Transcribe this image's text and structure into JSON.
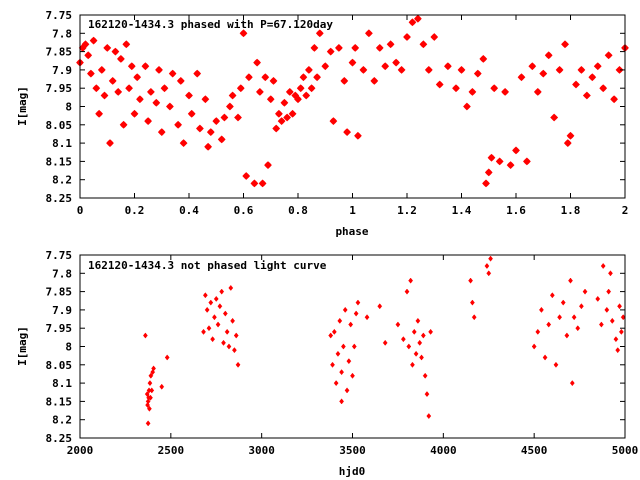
{
  "chart_data": [
    {
      "type": "scatter",
      "title": "162120-1434.3 phased with P=67.120day",
      "xlabel": "phase",
      "ylabel": "I[mag]",
      "xlim": [
        0,
        2
      ],
      "ylim": [
        8.25,
        7.75
      ],
      "y_inverted": true,
      "xticks": [
        "0",
        "0.2",
        "0.4",
        "0.6",
        "0.8",
        "1",
        "1.2",
        "1.4",
        "1.6",
        "1.8",
        "2"
      ],
      "yticks": [
        "7.75",
        "7.8",
        "7.85",
        "7.9",
        "7.95",
        "8",
        "8.05",
        "8.1",
        "8.15",
        "8.2",
        "8.25"
      ],
      "grid": false,
      "marker_color": "#ff0000",
      "marker": "filled-star",
      "series": [
        {
          "points": [
            [
              0.0,
              7.88
            ],
            [
              0.01,
              7.84
            ],
            [
              0.02,
              7.83
            ],
            [
              0.03,
              7.86
            ],
            [
              0.04,
              7.91
            ],
            [
              0.05,
              7.82
            ],
            [
              0.06,
              7.95
            ],
            [
              0.07,
              8.02
            ],
            [
              0.08,
              7.9
            ],
            [
              0.09,
              7.97
            ],
            [
              0.1,
              7.84
            ],
            [
              0.11,
              8.1
            ],
            [
              0.12,
              7.93
            ],
            [
              0.13,
              7.85
            ],
            [
              0.14,
              7.96
            ],
            [
              0.15,
              7.87
            ],
            [
              0.16,
              8.05
            ],
            [
              0.17,
              7.83
            ],
            [
              0.18,
              7.95
            ],
            [
              0.19,
              7.89
            ],
            [
              0.2,
              8.02
            ],
            [
              0.21,
              7.92
            ],
            [
              0.22,
              7.98
            ],
            [
              0.24,
              7.89
            ],
            [
              0.25,
              8.04
            ],
            [
              0.26,
              7.96
            ],
            [
              0.28,
              7.99
            ],
            [
              0.29,
              7.9
            ],
            [
              0.3,
              8.07
            ],
            [
              0.31,
              7.95
            ],
            [
              0.33,
              8.0
            ],
            [
              0.34,
              7.91
            ],
            [
              0.36,
              8.05
            ],
            [
              0.37,
              7.93
            ],
            [
              0.38,
              8.1
            ],
            [
              0.4,
              7.97
            ],
            [
              0.41,
              8.02
            ],
            [
              0.43,
              7.91
            ],
            [
              0.44,
              8.06
            ],
            [
              0.46,
              7.98
            ],
            [
              0.47,
              8.11
            ],
            [
              0.48,
              8.07
            ],
            [
              0.5,
              8.04
            ],
            [
              0.52,
              8.09
            ],
            [
              0.53,
              8.03
            ],
            [
              0.55,
              8.0
            ],
            [
              0.56,
              7.97
            ],
            [
              0.58,
              8.03
            ],
            [
              0.59,
              7.95
            ],
            [
              0.6,
              7.8
            ],
            [
              0.61,
              8.19
            ],
            [
              0.62,
              7.92
            ],
            [
              0.64,
              8.21
            ],
            [
              0.65,
              7.88
            ],
            [
              0.66,
              7.96
            ],
            [
              0.67,
              8.21
            ],
            [
              0.68,
              7.92
            ],
            [
              0.69,
              8.16
            ],
            [
              0.7,
              7.98
            ],
            [
              0.71,
              7.93
            ],
            [
              0.72,
              8.06
            ],
            [
              0.73,
              8.02
            ],
            [
              0.74,
              8.04
            ],
            [
              0.75,
              7.99
            ],
            [
              0.76,
              8.03
            ],
            [
              0.77,
              7.96
            ],
            [
              0.78,
              8.02
            ],
            [
              0.79,
              7.97
            ],
            [
              0.8,
              7.98
            ],
            [
              0.81,
              7.95
            ],
            [
              0.82,
              7.92
            ],
            [
              0.83,
              7.97
            ],
            [
              0.84,
              7.9
            ],
            [
              0.85,
              7.95
            ],
            [
              0.86,
              7.84
            ],
            [
              0.87,
              7.92
            ],
            [
              0.88,
              7.8
            ],
            [
              0.9,
              7.89
            ],
            [
              0.92,
              7.85
            ],
            [
              0.93,
              8.04
            ],
            [
              0.95,
              7.84
            ],
            [
              0.97,
              7.93
            ],
            [
              0.98,
              8.07
            ],
            [
              1.0,
              7.88
            ],
            [
              1.01,
              7.84
            ],
            [
              1.02,
              8.08
            ],
            [
              1.04,
              7.9
            ],
            [
              1.06,
              7.8
            ],
            [
              1.08,
              7.93
            ],
            [
              1.1,
              7.84
            ],
            [
              1.12,
              7.89
            ],
            [
              1.14,
              7.83
            ],
            [
              1.16,
              7.88
            ],
            [
              1.18,
              7.9
            ],
            [
              1.2,
              7.81
            ],
            [
              1.22,
              7.77
            ],
            [
              1.24,
              7.76
            ],
            [
              1.26,
              7.83
            ],
            [
              1.28,
              7.9
            ],
            [
              1.3,
              7.81
            ],
            [
              1.32,
              7.94
            ],
            [
              1.35,
              7.89
            ],
            [
              1.38,
              7.95
            ],
            [
              1.4,
              7.9
            ],
            [
              1.42,
              8.0
            ],
            [
              1.44,
              7.96
            ],
            [
              1.46,
              7.91
            ],
            [
              1.48,
              7.87
            ],
            [
              1.49,
              8.21
            ],
            [
              1.5,
              8.18
            ],
            [
              1.51,
              8.14
            ],
            [
              1.52,
              7.95
            ],
            [
              1.54,
              8.15
            ],
            [
              1.56,
              7.96
            ],
            [
              1.58,
              8.16
            ],
            [
              1.6,
              8.12
            ],
            [
              1.62,
              7.92
            ],
            [
              1.64,
              8.15
            ],
            [
              1.66,
              7.89
            ],
            [
              1.68,
              7.96
            ],
            [
              1.7,
              7.91
            ],
            [
              1.72,
              7.86
            ],
            [
              1.74,
              8.03
            ],
            [
              1.76,
              7.9
            ],
            [
              1.78,
              7.83
            ],
            [
              1.79,
              8.1
            ],
            [
              1.8,
              8.08
            ],
            [
              1.82,
              7.94
            ],
            [
              1.84,
              7.9
            ],
            [
              1.86,
              7.97
            ],
            [
              1.88,
              7.92
            ],
            [
              1.9,
              7.89
            ],
            [
              1.92,
              7.95
            ],
            [
              1.94,
              7.86
            ],
            [
              1.96,
              7.98
            ],
            [
              1.98,
              7.9
            ],
            [
              2.0,
              7.84
            ]
          ]
        }
      ]
    },
    {
      "type": "scatter",
      "title": "162120-1434.3 not phased light curve",
      "xlabel": "hjd0",
      "ylabel": "I[mag]",
      "xlim": [
        2000,
        5000
      ],
      "ylim": [
        8.25,
        7.75
      ],
      "y_inverted": true,
      "xticks": [
        "2000",
        "2500",
        "3000",
        "3500",
        "4000",
        "4500",
        "5000"
      ],
      "yticks": [
        "7.75",
        "7.8",
        "7.85",
        "7.9",
        "7.95",
        "8",
        "8.05",
        "8.1",
        "8.15",
        "8.2",
        "8.25"
      ],
      "grid": false,
      "marker_color": "#ff0000",
      "marker": "filled-diamond",
      "series": [
        {
          "points": [
            [
              2360,
              7.97
            ],
            [
              2370,
              8.13
            ],
            [
              2372,
              8.16
            ],
            [
              2375,
              8.15
            ],
            [
              2378,
              8.14
            ],
            [
              2380,
              8.12
            ],
            [
              2382,
              8.17
            ],
            [
              2385,
              8.1
            ],
            [
              2388,
              8.14
            ],
            [
              2390,
              8.08
            ],
            [
              2395,
              8.12
            ],
            [
              2400,
              8.07
            ],
            [
              2405,
              8.06
            ],
            [
              2375,
              8.21
            ],
            [
              2450,
              8.11
            ],
            [
              2480,
              8.03
            ],
            [
              2680,
              7.96
            ],
            [
              2690,
              7.86
            ],
            [
              2700,
              7.9
            ],
            [
              2710,
              7.95
            ],
            [
              2720,
              7.88
            ],
            [
              2730,
              7.98
            ],
            [
              2740,
              7.92
            ],
            [
              2750,
              7.87
            ],
            [
              2760,
              7.94
            ],
            [
              2770,
              7.89
            ],
            [
              2780,
              7.85
            ],
            [
              2790,
              7.99
            ],
            [
              2800,
              7.91
            ],
            [
              2810,
              7.96
            ],
            [
              2820,
              8.0
            ],
            [
              2830,
              7.84
            ],
            [
              2840,
              7.93
            ],
            [
              2850,
              8.01
            ],
            [
              2860,
              7.97
            ],
            [
              2870,
              8.05
            ],
            [
              3380,
              7.97
            ],
            [
              3390,
              8.05
            ],
            [
              3400,
              7.96
            ],
            [
              3410,
              8.1
            ],
            [
              3420,
              8.02
            ],
            [
              3430,
              7.93
            ],
            [
              3440,
              8.07
            ],
            [
              3450,
              8.0
            ],
            [
              3460,
              7.9
            ],
            [
              3470,
              8.12
            ],
            [
              3480,
              8.04
            ],
            [
              3490,
              7.94
            ],
            [
              3500,
              8.08
            ],
            [
              3510,
              8.0
            ],
            [
              3520,
              7.91
            ],
            [
              3530,
              7.88
            ],
            [
              3440,
              8.15
            ],
            [
              3580,
              7.92
            ],
            [
              3650,
              7.89
            ],
            [
              3680,
              7.99
            ],
            [
              3750,
              7.94
            ],
            [
              3780,
              7.98
            ],
            [
              3800,
              7.85
            ],
            [
              3810,
              8.0
            ],
            [
              3820,
              7.82
            ],
            [
              3830,
              8.05
            ],
            [
              3840,
              7.96
            ],
            [
              3850,
              8.02
            ],
            [
              3860,
              7.93
            ],
            [
              3870,
              7.99
            ],
            [
              3880,
              8.03
            ],
            [
              3890,
              7.97
            ],
            [
              3900,
              8.08
            ],
            [
              3910,
              8.13
            ],
            [
              3920,
              8.19
            ],
            [
              3930,
              7.96
            ],
            [
              4150,
              7.82
            ],
            [
              4160,
              7.88
            ],
            [
              4170,
              7.92
            ],
            [
              4240,
              7.78
            ],
            [
              4250,
              7.8
            ],
            [
              4260,
              7.76
            ],
            [
              4500,
              8.0
            ],
            [
              4520,
              7.96
            ],
            [
              4540,
              7.9
            ],
            [
              4560,
              8.03
            ],
            [
              4580,
              7.94
            ],
            [
              4600,
              7.86
            ],
            [
              4620,
              8.05
            ],
            [
              4640,
              7.92
            ],
            [
              4660,
              7.88
            ],
            [
              4680,
              7.97
            ],
            [
              4700,
              7.82
            ],
            [
              4710,
              8.1
            ],
            [
              4720,
              7.92
            ],
            [
              4740,
              7.95
            ],
            [
              4760,
              7.89
            ],
            [
              4780,
              7.85
            ],
            [
              4850,
              7.87
            ],
            [
              4870,
              7.94
            ],
            [
              4880,
              7.78
            ],
            [
              4900,
              7.9
            ],
            [
              4910,
              7.85
            ],
            [
              4920,
              7.8
            ],
            [
              4930,
              7.93
            ],
            [
              4950,
              7.98
            ],
            [
              4960,
              8.01
            ],
            [
              4970,
              7.89
            ],
            [
              4980,
              7.96
            ],
            [
              4990,
              7.92
            ]
          ]
        }
      ]
    }
  ]
}
